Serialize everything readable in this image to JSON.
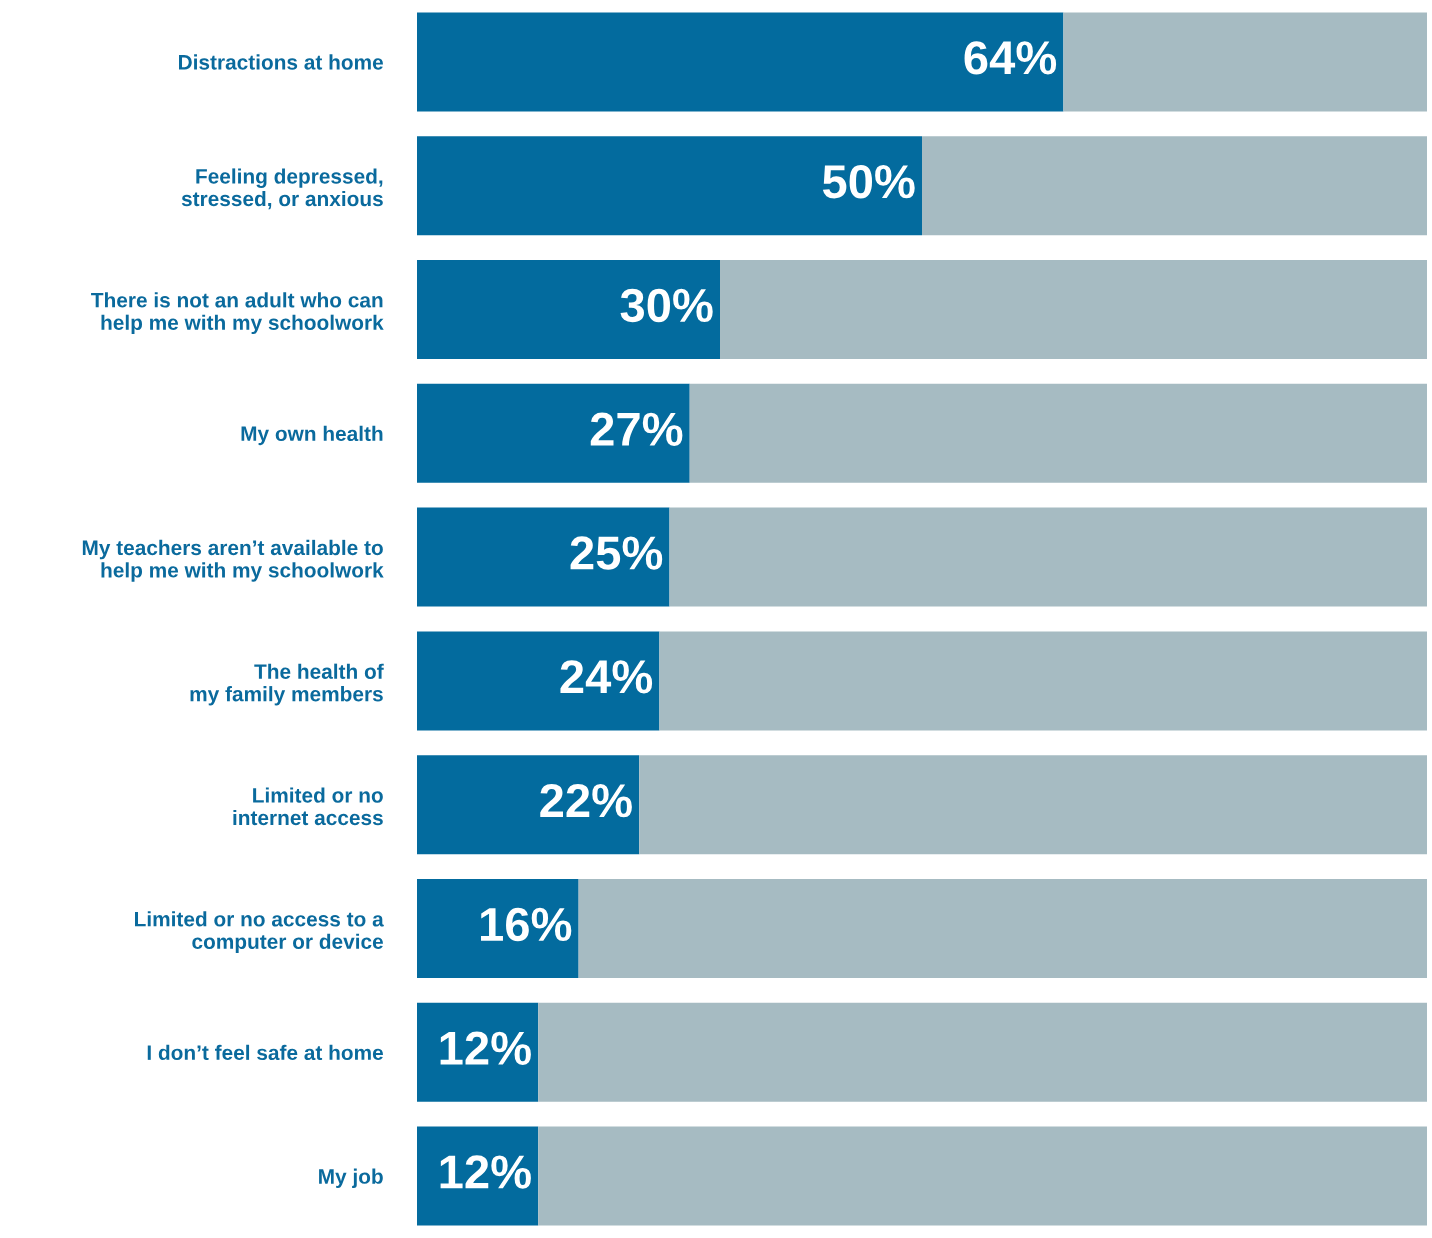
{
  "chart_data": {
    "type": "bar",
    "orientation": "horizontal",
    "stacked": true,
    "categories": [
      "Distractions at home",
      "Feeling depressed,\nstressed, or anxious",
      "There is not an adult who can\nhelp me with my schoolwork",
      "My own health",
      "My teachers aren’t available to\nhelp me with my schoolwork",
      "The health of\nmy family members",
      "Limited or no\ninternet access",
      "Limited or no access to a\ncomputer or device",
      "I don’t feel safe at home",
      "My job"
    ],
    "series": [
      {
        "color": "#036b9e",
        "values": [
          64,
          50,
          30,
          27,
          25,
          24,
          22,
          16,
          12,
          12
        ],
        "value_labels": [
          "64%",
          "50%",
          "30%",
          "27%",
          "25%",
          "24%",
          "22%",
          "16%",
          "12%",
          "12%"
        ]
      },
      {
        "color": "#a6bbc2",
        "values": [
          36,
          50,
          70,
          73,
          75,
          76,
          78,
          84,
          88,
          88
        ]
      }
    ],
    "xlim": [
      0,
      100
    ],
    "tick_labels": "y",
    "grid": false,
    "legend": false
  }
}
